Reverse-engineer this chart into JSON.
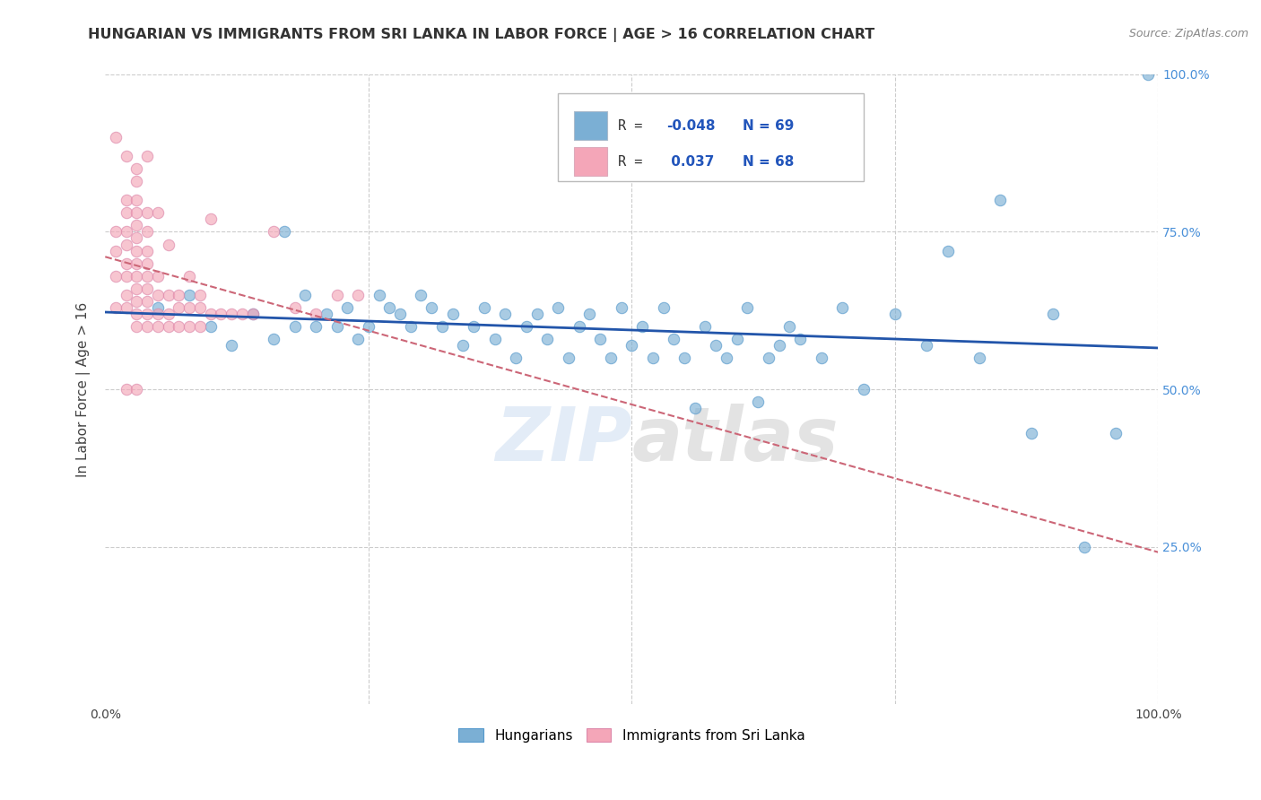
{
  "title": "HUNGARIAN VS IMMIGRANTS FROM SRI LANKA IN LABOR FORCE | AGE > 16 CORRELATION CHART",
  "source_text": "Source: ZipAtlas.com",
  "ylabel": "In Labor Force | Age > 16",
  "watermark": "ZIPatlas",
  "bg_color": "#ffffff",
  "grid_color": "#cccccc",
  "blue_color": "#7bafd4",
  "pink_color": "#f4a6b8",
  "blue_line_color": "#2255aa",
  "pink_line_color": "#cc6677",
  "xlim": [
    0,
    1
  ],
  "ylim": [
    0,
    1
  ],
  "blue_r": -0.048,
  "blue_n": 69,
  "pink_r": 0.037,
  "pink_n": 68,
  "blue_scatter_x": [
    0.05,
    0.08,
    0.1,
    0.12,
    0.14,
    0.16,
    0.17,
    0.18,
    0.19,
    0.2,
    0.21,
    0.22,
    0.23,
    0.24,
    0.25,
    0.26,
    0.27,
    0.28,
    0.29,
    0.3,
    0.31,
    0.32,
    0.33,
    0.34,
    0.35,
    0.36,
    0.37,
    0.38,
    0.39,
    0.4,
    0.41,
    0.42,
    0.43,
    0.44,
    0.45,
    0.46,
    0.47,
    0.48,
    0.49,
    0.5,
    0.51,
    0.52,
    0.53,
    0.54,
    0.55,
    0.56,
    0.57,
    0.58,
    0.59,
    0.6,
    0.61,
    0.62,
    0.63,
    0.64,
    0.65,
    0.66,
    0.68,
    0.7,
    0.72,
    0.75,
    0.78,
    0.8,
    0.83,
    0.85,
    0.88,
    0.9,
    0.93,
    0.96,
    0.99
  ],
  "blue_scatter_y": [
    0.63,
    0.65,
    0.6,
    0.57,
    0.62,
    0.58,
    0.75,
    0.6,
    0.65,
    0.6,
    0.62,
    0.6,
    0.63,
    0.58,
    0.6,
    0.65,
    0.63,
    0.62,
    0.6,
    0.65,
    0.63,
    0.6,
    0.62,
    0.57,
    0.6,
    0.63,
    0.58,
    0.62,
    0.55,
    0.6,
    0.62,
    0.58,
    0.63,
    0.55,
    0.6,
    0.62,
    0.58,
    0.55,
    0.63,
    0.57,
    0.6,
    0.55,
    0.63,
    0.58,
    0.55,
    0.47,
    0.6,
    0.57,
    0.55,
    0.58,
    0.63,
    0.48,
    0.55,
    0.57,
    0.6,
    0.58,
    0.55,
    0.63,
    0.5,
    0.62,
    0.57,
    0.72,
    0.55,
    0.8,
    0.43,
    0.62,
    0.25,
    0.43,
    1.0
  ],
  "pink_scatter_x": [
    0.01,
    0.01,
    0.01,
    0.01,
    0.02,
    0.02,
    0.02,
    0.02,
    0.02,
    0.02,
    0.02,
    0.02,
    0.03,
    0.03,
    0.03,
    0.03,
    0.03,
    0.03,
    0.03,
    0.03,
    0.03,
    0.03,
    0.03,
    0.03,
    0.04,
    0.04,
    0.04,
    0.04,
    0.04,
    0.04,
    0.04,
    0.04,
    0.04,
    0.05,
    0.05,
    0.05,
    0.05,
    0.06,
    0.06,
    0.06,
    0.07,
    0.07,
    0.08,
    0.08,
    0.09,
    0.09,
    0.1,
    0.11,
    0.12,
    0.13,
    0.14,
    0.16,
    0.18,
    0.2,
    0.22,
    0.24,
    0.01,
    0.02,
    0.03,
    0.04,
    0.05,
    0.06,
    0.07,
    0.08,
    0.09,
    0.1,
    0.02,
    0.03
  ],
  "pink_scatter_y": [
    0.63,
    0.68,
    0.72,
    0.75,
    0.63,
    0.65,
    0.68,
    0.7,
    0.73,
    0.75,
    0.78,
    0.8,
    0.6,
    0.62,
    0.64,
    0.66,
    0.68,
    0.7,
    0.72,
    0.74,
    0.76,
    0.78,
    0.8,
    0.83,
    0.6,
    0.62,
    0.64,
    0.66,
    0.68,
    0.7,
    0.72,
    0.75,
    0.78,
    0.6,
    0.62,
    0.65,
    0.68,
    0.6,
    0.62,
    0.65,
    0.6,
    0.63,
    0.6,
    0.63,
    0.6,
    0.63,
    0.62,
    0.62,
    0.62,
    0.62,
    0.62,
    0.75,
    0.63,
    0.62,
    0.65,
    0.65,
    0.9,
    0.87,
    0.85,
    0.87,
    0.78,
    0.73,
    0.65,
    0.68,
    0.65,
    0.77,
    0.5,
    0.5
  ]
}
